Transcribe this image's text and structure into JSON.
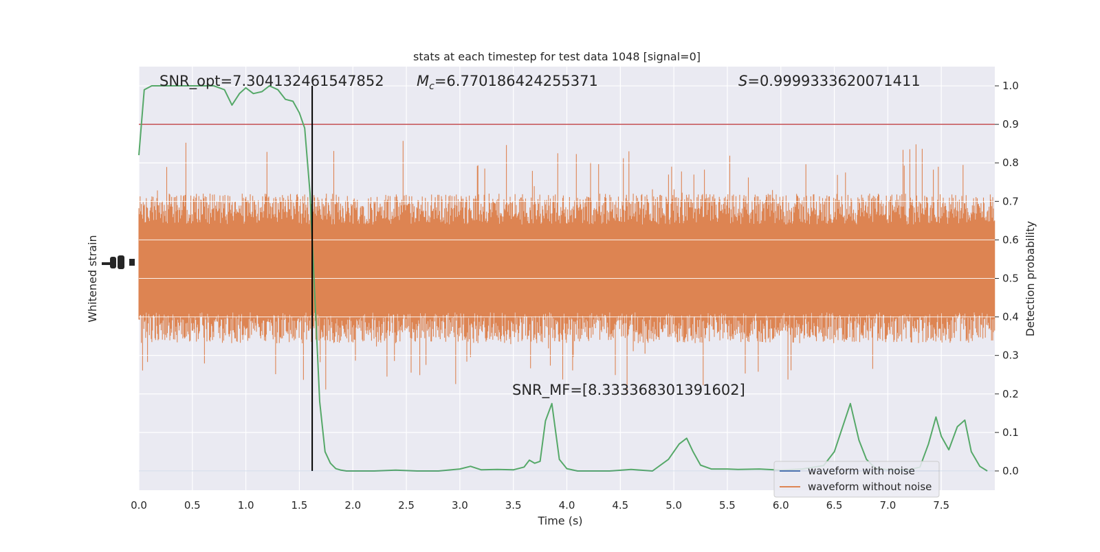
{
  "chart_data": {
    "type": "line",
    "title": "stats at each timestep for test data 1048 [signal=0]",
    "xlabel": "Time (s)",
    "ylabel_left": "Whitened strain",
    "ylabel_right": "Detection probability",
    "xlim": [
      0.0,
      8.0
    ],
    "ylim_right": [
      -0.05,
      1.05
    ],
    "x_ticks": [
      "0.0",
      "0.5",
      "1.0",
      "1.5",
      "2.0",
      "2.5",
      "3.0",
      "3.5",
      "4.0",
      "4.5",
      "5.0",
      "5.5",
      "6.0",
      "6.5",
      "7.0",
      "7.5"
    ],
    "y_right_ticks": [
      "0.0",
      "0.1",
      "0.2",
      "0.3",
      "0.4",
      "0.5",
      "0.6",
      "0.7",
      "0.8",
      "0.9",
      "1.0"
    ],
    "annotations": {
      "snr_opt": "SNR_opt=7.304132461547852",
      "mc_symbol": "M",
      "mc_sub": "c",
      "mc_value": "=6.770186424255371",
      "s_symbol": "S",
      "s_value": "=0.9999333620071411",
      "snr_mf": "SNR_MF=[8.333368301391602]"
    },
    "threshold": 0.9,
    "vline_time": 1.62,
    "legend": [
      "waveform with noise",
      "waveform without noise"
    ],
    "grid": true,
    "legend_position": "lower-right",
    "colors": {
      "background": "#eaeaf2",
      "noise": "#dd8452",
      "noise_free": "#4c72b0",
      "probability": "#55a868",
      "threshold": "#c44e52",
      "vline": "#000000"
    },
    "series": [
      {
        "name": "Detection probability",
        "x": [
          0.0,
          0.05,
          0.12,
          0.2,
          0.3,
          0.4,
          0.5,
          0.6,
          0.7,
          0.8,
          0.87,
          0.94,
          1.0,
          1.07,
          1.15,
          1.22,
          1.3,
          1.37,
          1.44,
          1.5,
          1.55,
          1.6,
          1.65,
          1.69,
          1.74,
          1.79,
          1.84,
          1.89,
          1.94,
          2.0,
          2.1,
          2.2,
          2.4,
          2.6,
          2.8,
          3.0,
          3.1,
          3.2,
          3.35,
          3.5,
          3.6,
          3.65,
          3.7,
          3.75,
          3.8,
          3.86,
          3.93,
          4.0,
          4.1,
          4.2,
          4.4,
          4.6,
          4.8,
          4.95,
          5.05,
          5.12,
          5.18,
          5.25,
          5.35,
          5.5,
          5.6,
          5.8,
          6.0,
          6.2,
          6.4,
          6.5,
          6.65,
          6.73,
          6.8,
          6.88,
          7.0,
          7.1,
          7.2,
          7.3,
          7.38,
          7.45,
          7.5,
          7.57,
          7.65,
          7.72,
          7.78,
          7.86,
          7.93
        ],
        "y": [
          0.82,
          0.99,
          1.0,
          1.0,
          1.0,
          1.0,
          1.0,
          1.0,
          1.0,
          0.99,
          0.95,
          0.98,
          0.995,
          0.98,
          0.985,
          1.0,
          0.99,
          0.965,
          0.96,
          0.93,
          0.89,
          0.72,
          0.42,
          0.18,
          0.05,
          0.02,
          0.006,
          0.002,
          0.0,
          0.0,
          0.0,
          0.0,
          0.002,
          0.0,
          0.0,
          0.005,
          0.012,
          0.003,
          0.004,
          0.003,
          0.01,
          0.028,
          0.02,
          0.025,
          0.13,
          0.175,
          0.03,
          0.006,
          0.0,
          0.0,
          0.0,
          0.004,
          0.0,
          0.03,
          0.07,
          0.085,
          0.05,
          0.015,
          0.005,
          0.005,
          0.004,
          0.005,
          0.002,
          0.005,
          0.014,
          0.05,
          0.175,
          0.08,
          0.03,
          0.008,
          0.003,
          0.004,
          0.003,
          0.01,
          0.07,
          0.14,
          0.09,
          0.055,
          0.115,
          0.132,
          0.05,
          0.012,
          0.0
        ]
      },
      {
        "name": "waveform with noise",
        "x": [
          0.0,
          8.0
        ],
        "y": [
          0.0,
          0.0
        ]
      }
    ]
  }
}
